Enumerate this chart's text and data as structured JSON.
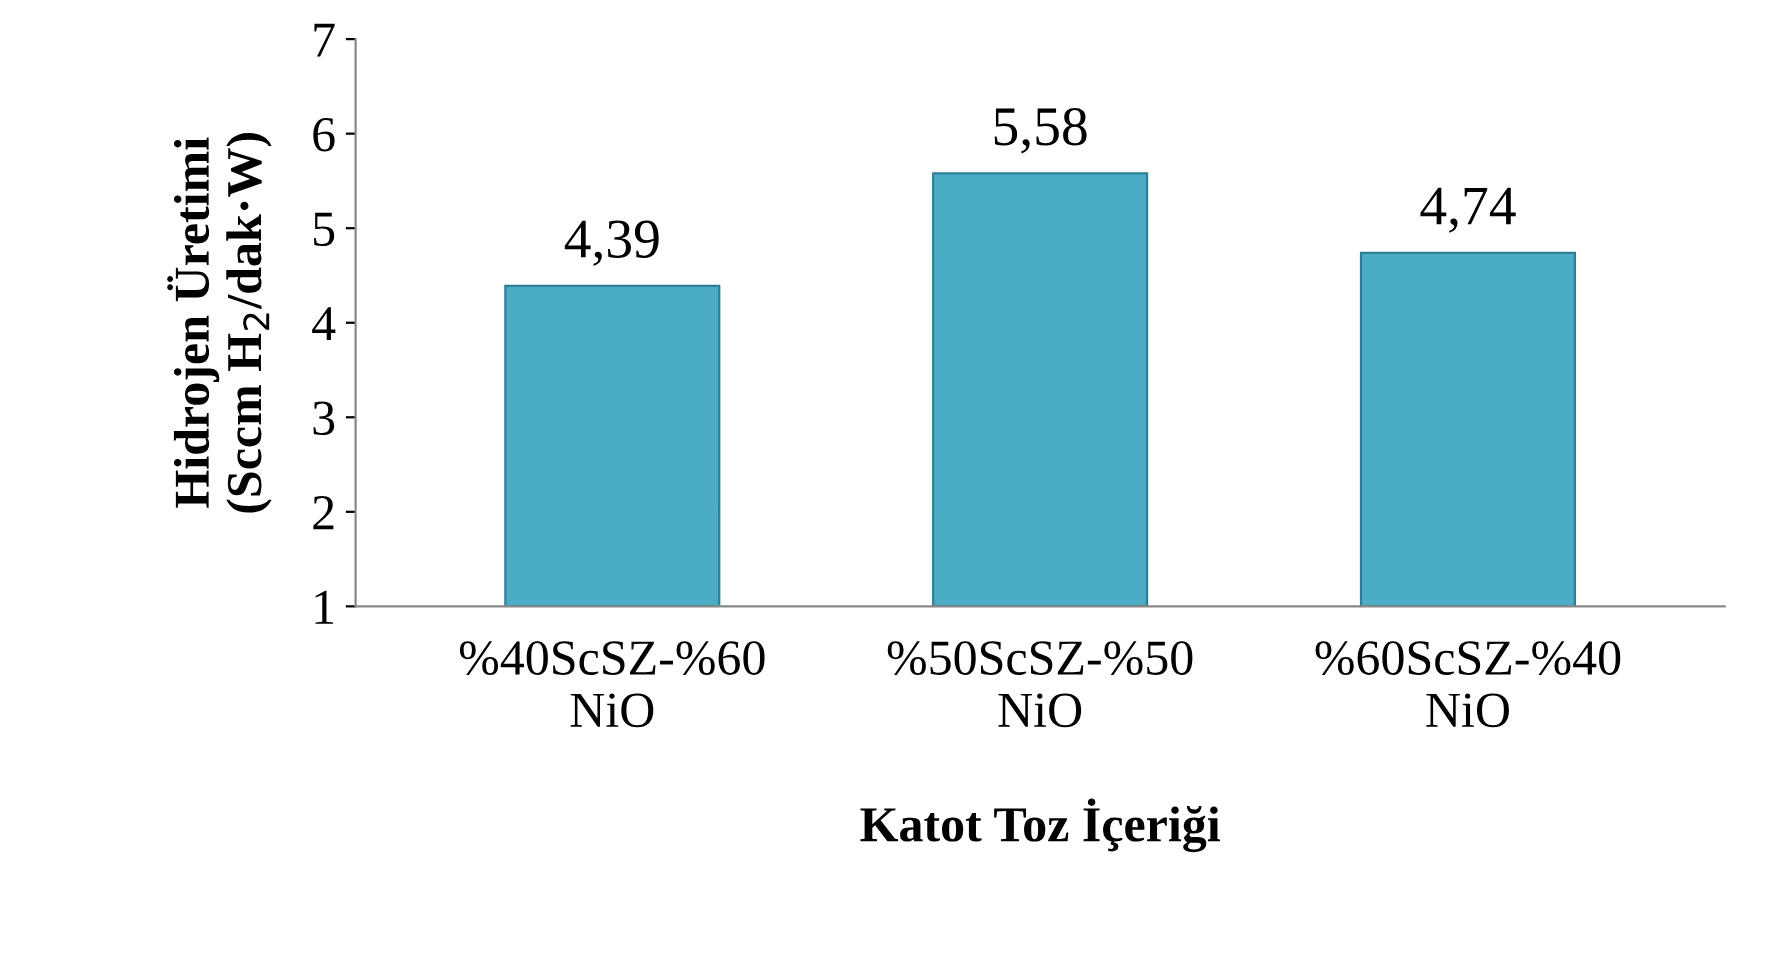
{
  "chart_data": {
    "type": "bar",
    "xlabel": "Katot Toz İçeriği",
    "ylabel": "Hidrojen Üretimi\n(Sccm H$_{2}$/dak·W)",
    "categories": [
      "%40ScSZ-%60\nNiO",
      "%50ScSZ-%50\nNiO",
      "%60ScSZ-%40\nNiO"
    ],
    "values": [
      4.39,
      5.58,
      4.74
    ],
    "value_labels": [
      "4,39",
      "5,58",
      "4,74"
    ],
    "color": "#4bacc6",
    "ylim": [
      1,
      7
    ],
    "yticks": [
      1,
      2,
      3,
      4,
      5,
      6,
      7
    ],
    "grid": false
  }
}
